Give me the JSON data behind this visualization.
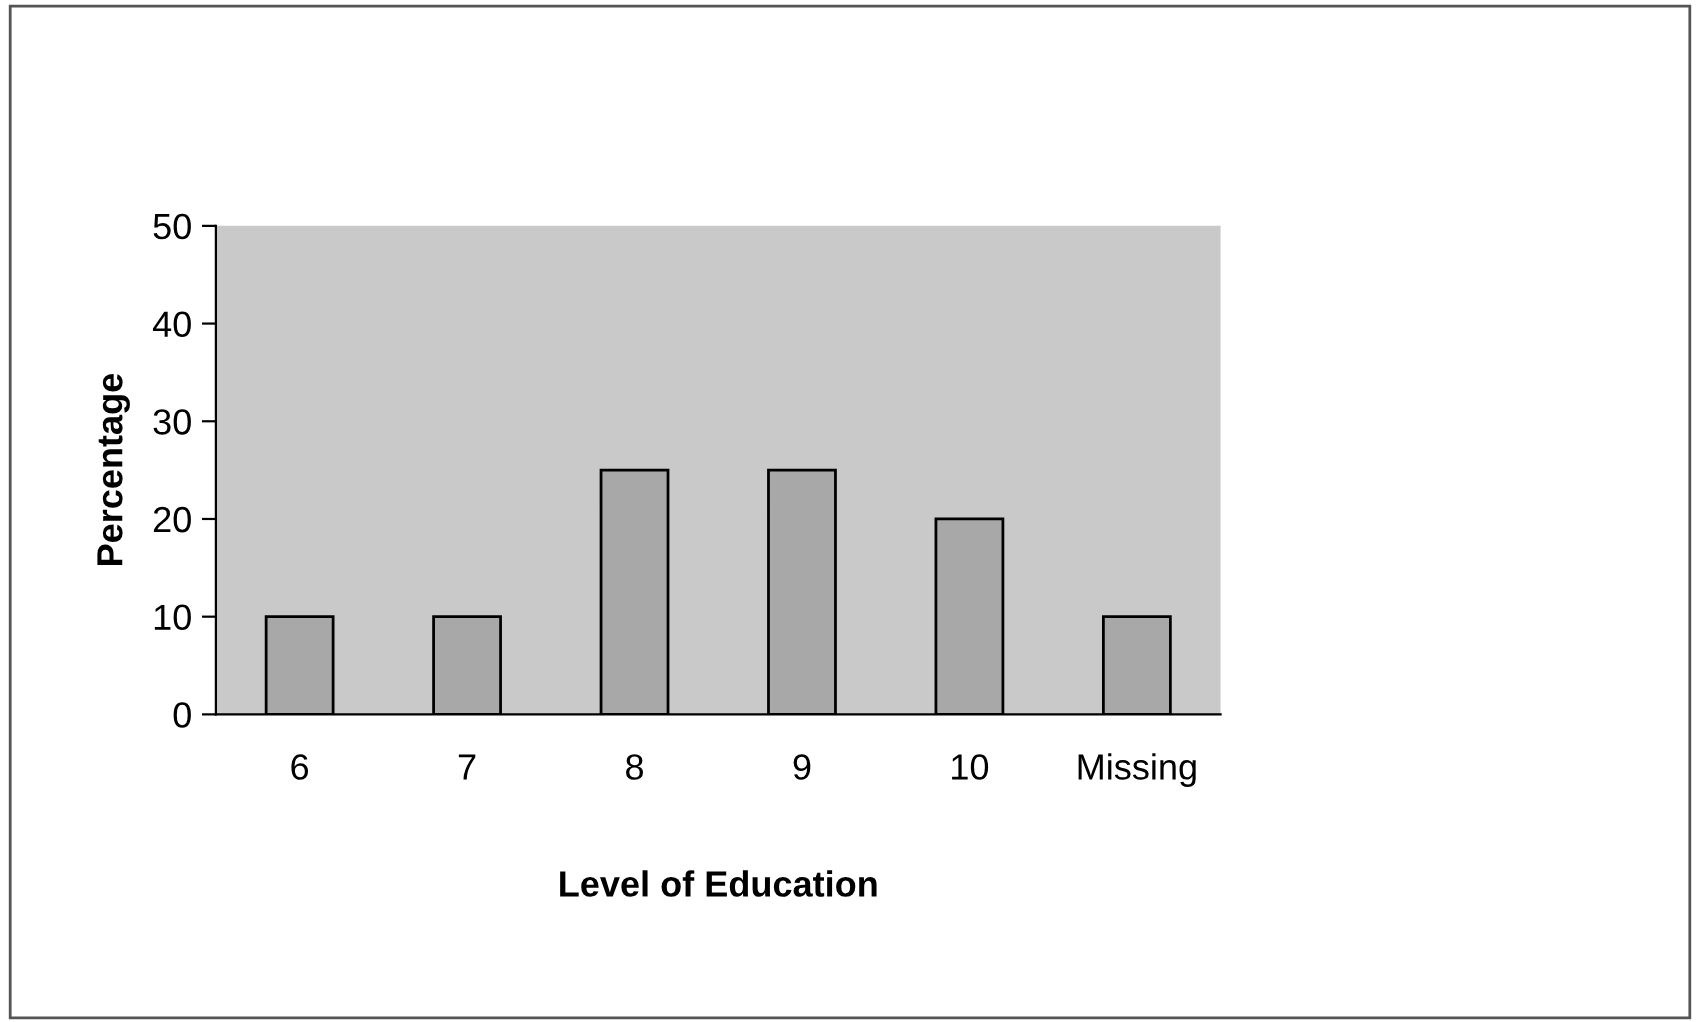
{
  "chart_data": {
    "type": "bar",
    "xlabel": "Level of Education",
    "ylabel": "Percentage",
    "categories": [
      "6",
      "7",
      "8",
      "9",
      "10",
      "Missing"
    ],
    "values": [
      10,
      10,
      25,
      25,
      20,
      10
    ],
    "color": "#a8a8a8",
    "ylim": [
      0,
      50
    ],
    "yticks": [
      0,
      10,
      20,
      30,
      40,
      50
    ],
    "grid": false
  }
}
